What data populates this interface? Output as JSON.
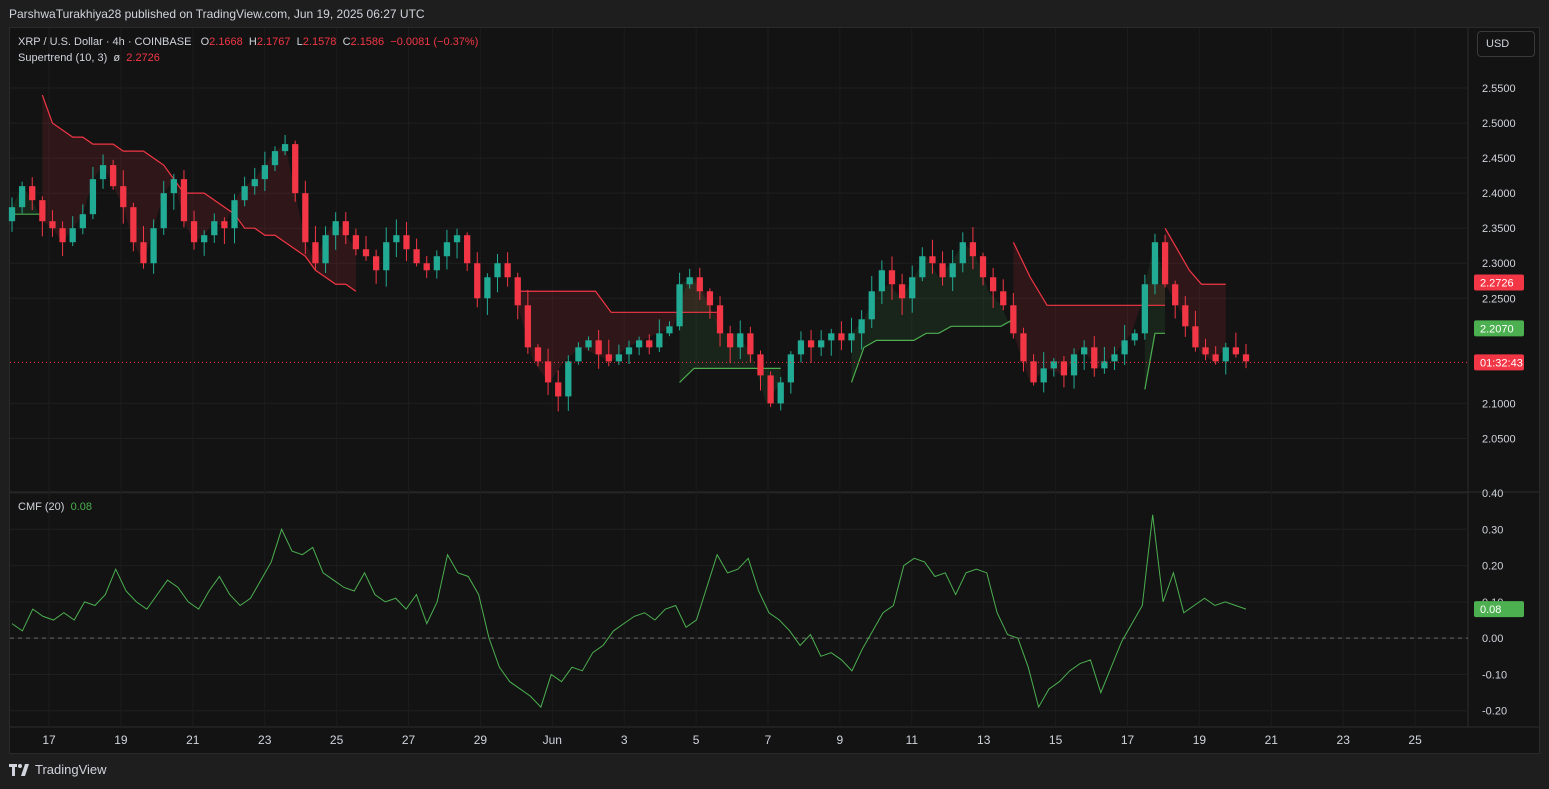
{
  "header": {
    "published_text": "ParshwaTurakhiya28 published on TradingView.com, Jun 19, 2025 06:27 UTC"
  },
  "footer": {
    "brand": "TradingView"
  },
  "currency_button": "USD",
  "legend": {
    "symbol": "XRP / U.S. Dollar · 4h · COINBASE",
    "o_label": "O",
    "o_value": "2.1668",
    "h_label": "H",
    "h_value": "2.1767",
    "l_label": "L",
    "l_value": "2.1578",
    "c_label": "C",
    "c_value": "2.1586",
    "change": "−0.0081 (−0.37%)",
    "supertrend_label": "Supertrend (10, 3)",
    "supertrend_symbol": "ø",
    "supertrend_value": "2.2726",
    "cmf_label": "CMF (20)",
    "cmf_value": "0.08"
  },
  "price_badges": {
    "supertrend_up": "2.2726",
    "supertrend_down": "2.2070",
    "countdown": "01:32:43",
    "cmf": "0.08"
  },
  "colors": {
    "up": "#22ab94",
    "down": "#f23645",
    "cmf_line": "#4caf50",
    "background": "#131313"
  },
  "chart_data": [
    {
      "type": "candlestick",
      "title": "XRP / U.S. Dollar · 4h · COINBASE",
      "x_ticks": [
        "17",
        "19",
        "21",
        "23",
        "25",
        "27",
        "29",
        "Jun",
        "3",
        "5",
        "7",
        "9",
        "11",
        "13",
        "15",
        "17",
        "19",
        "21",
        "23",
        "25"
      ],
      "y_ticks": [
        "2.5500",
        "2.5000",
        "2.4500",
        "2.4000",
        "2.3500",
        "2.3000",
        "2.2500",
        "2.1000",
        "2.0500"
      ],
      "ylim": [
        2.005,
        2.59
      ],
      "last_close": 2.1586,
      "closes": [
        2.38,
        2.41,
        2.39,
        2.36,
        2.35,
        2.33,
        2.35,
        2.37,
        2.42,
        2.44,
        2.41,
        2.38,
        2.33,
        2.3,
        2.35,
        2.4,
        2.42,
        2.36,
        2.33,
        2.34,
        2.36,
        2.35,
        2.39,
        2.41,
        2.42,
        2.44,
        2.46,
        2.47,
        2.4,
        2.33,
        2.3,
        2.34,
        2.36,
        2.34,
        2.32,
        2.31,
        2.29,
        2.33,
        2.34,
        2.32,
        2.3,
        2.29,
        2.31,
        2.33,
        2.34,
        2.3,
        2.25,
        2.28,
        2.3,
        2.28,
        2.24,
        2.18,
        2.16,
        2.13,
        2.11,
        2.16,
        2.18,
        2.19,
        2.17,
        2.16,
        2.17,
        2.18,
        2.19,
        2.18,
        2.2,
        2.21,
        2.27,
        2.28,
        2.26,
        2.24,
        2.2,
        2.18,
        2.2,
        2.17,
        2.14,
        2.1,
        2.13,
        2.17,
        2.19,
        2.18,
        2.19,
        2.2,
        2.19,
        2.2,
        2.22,
        2.26,
        2.29,
        2.27,
        2.25,
        2.28,
        2.31,
        2.3,
        2.28,
        2.3,
        2.33,
        2.31,
        2.28,
        2.26,
        2.24,
        2.2,
        2.16,
        2.13,
        2.15,
        2.16,
        2.14,
        2.17,
        2.18,
        2.15,
        2.16,
        2.17,
        2.19,
        2.2,
        2.27,
        2.33,
        2.27,
        2.24,
        2.21,
        2.18,
        2.17,
        2.16,
        2.18,
        2.17,
        2.16
      ],
      "supertrend": {
        "down_segments": [
          {
            "from_index": 3,
            "to_index": 34,
            "values": [
              2.54,
              2.5,
              2.49,
              2.48,
              2.48,
              2.47,
              2.47,
              2.47,
              2.46,
              2.46,
              2.46,
              2.45,
              2.44,
              2.42,
              2.4,
              2.4,
              2.4,
              2.39,
              2.38,
              2.37,
              2.35,
              2.35,
              2.34,
              2.34,
              2.33,
              2.32,
              2.31,
              2.29,
              2.28,
              2.27,
              2.27,
              2.26
            ]
          },
          {
            "from_index": 50,
            "to_index": 70,
            "values": [
              2.26,
              2.26,
              2.26,
              2.26,
              2.26,
              2.26,
              2.23,
              2.23,
              2.23,
              2.23,
              2.23,
              2.23,
              2.23,
              2.23
            ]
          },
          {
            "from_index": 99,
            "to_index": 114,
            "values": [
              2.33,
              2.28,
              2.24,
              2.24,
              2.24,
              2.24,
              2.24,
              2.24,
              2.24,
              2.24
            ]
          },
          {
            "from_index": 114,
            "to_index": 120,
            "values": [
              2.35,
              2.32,
              2.29,
              2.27,
              2.27,
              2.27
            ]
          }
        ],
        "up_segments": [
          {
            "from_index": 0,
            "to_index": 3,
            "values": [
              2.37,
              2.37,
              2.37,
              2.37
            ]
          },
          {
            "from_index": 66,
            "to_index": 76,
            "values": [
              2.13,
              2.15,
              2.15,
              2.15,
              2.15,
              2.15,
              2.15,
              2.15
            ]
          },
          {
            "from_index": 83,
            "to_index": 99,
            "values": [
              2.13,
              2.18,
              2.19,
              2.19,
              2.19,
              2.19,
              2.2,
              2.2,
              2.21,
              2.21,
              2.21,
              2.21,
              2.21,
              2.22
            ]
          },
          {
            "from_index": 112,
            "to_index": 114,
            "values": [
              2.12,
              2.2,
              2.2
            ]
          }
        ]
      }
    },
    {
      "type": "line",
      "title": "CMF (20)",
      "y_ticks": [
        "0.40",
        "0.30",
        "0.20",
        "0.10",
        "0.00",
        "-0.10",
        "-0.20"
      ],
      "ylim": [
        -0.22,
        0.4
      ],
      "zero_line": 0.0,
      "values": [
        0.04,
        0.02,
        0.08,
        0.06,
        0.05,
        0.07,
        0.05,
        0.1,
        0.09,
        0.12,
        0.19,
        0.13,
        0.1,
        0.08,
        0.12,
        0.16,
        0.14,
        0.1,
        0.08,
        0.13,
        0.17,
        0.12,
        0.09,
        0.11,
        0.16,
        0.21,
        0.3,
        0.24,
        0.23,
        0.25,
        0.18,
        0.16,
        0.14,
        0.13,
        0.18,
        0.12,
        0.1,
        0.11,
        0.08,
        0.12,
        0.04,
        0.1,
        0.23,
        0.18,
        0.17,
        0.12,
        0.0,
        -0.08,
        -0.12,
        -0.14,
        -0.16,
        -0.19,
        -0.1,
        -0.12,
        -0.08,
        -0.09,
        -0.04,
        -0.02,
        0.02,
        0.04,
        0.06,
        0.07,
        0.05,
        0.08,
        0.09,
        0.03,
        0.05,
        0.14,
        0.23,
        0.18,
        0.19,
        0.22,
        0.13,
        0.07,
        0.05,
        0.02,
        -0.02,
        0.01,
        -0.05,
        -0.04,
        -0.06,
        -0.09,
        -0.03,
        0.02,
        0.07,
        0.09,
        0.2,
        0.22,
        0.21,
        0.17,
        0.18,
        0.12,
        0.18,
        0.19,
        0.18,
        0.07,
        0.01,
        0.0,
        -0.08,
        -0.19,
        -0.14,
        -0.12,
        -0.09,
        -0.07,
        -0.06,
        -0.15,
        -0.08,
        -0.01,
        0.04,
        0.09,
        0.34,
        0.1,
        0.18,
        0.07,
        0.09,
        0.11,
        0.09,
        0.1,
        0.09,
        0.08
      ]
    }
  ]
}
